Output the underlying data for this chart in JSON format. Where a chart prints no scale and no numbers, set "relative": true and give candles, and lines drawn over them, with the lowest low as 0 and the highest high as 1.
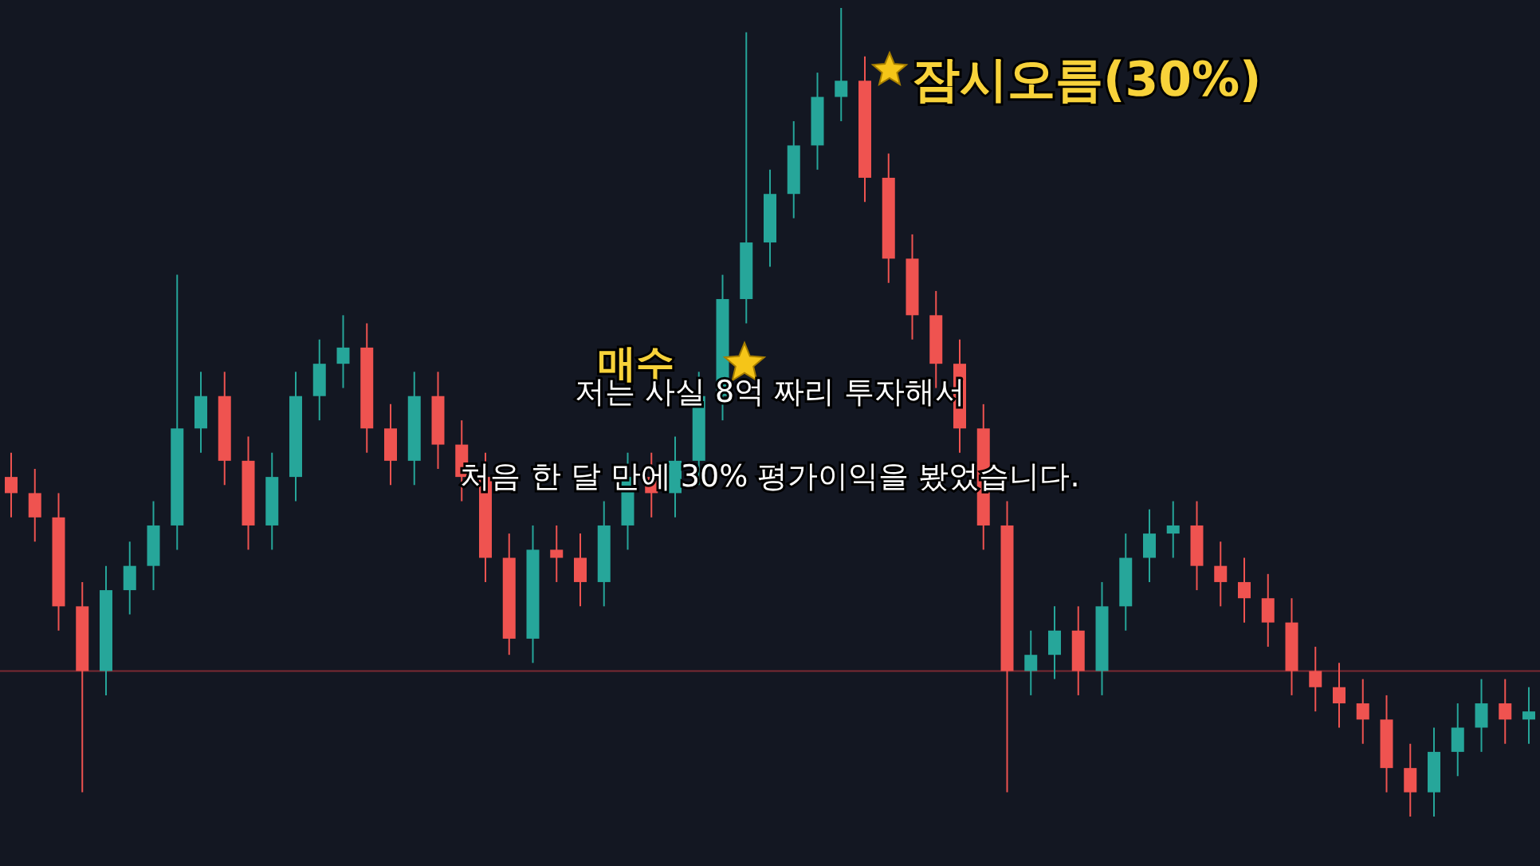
{
  "chart_data": {
    "type": "candlestick",
    "relative": true,
    "categories": [
      null,
      null,
      null,
      null,
      null,
      null,
      null,
      null,
      null,
      null,
      null,
      null,
      null,
      null,
      null,
      null,
      null,
      null,
      null,
      null,
      null,
      null,
      null,
      null,
      null,
      null,
      null,
      null,
      null,
      null,
      null,
      null,
      null,
      null,
      null,
      null,
      null,
      null,
      null,
      null,
      null,
      null,
      null,
      null,
      null,
      null,
      null,
      null,
      null,
      null,
      null,
      null,
      null,
      null,
      null,
      null,
      null,
      null,
      null,
      null,
      null,
      null,
      null,
      null,
      null
    ],
    "ohlc": [
      [
        0.42,
        0.45,
        0.37,
        0.4
      ],
      [
        0.4,
        0.43,
        0.34,
        0.37
      ],
      [
        0.37,
        0.4,
        0.23,
        0.26
      ],
      [
        0.26,
        0.29,
        0.03,
        0.18
      ],
      [
        0.18,
        0.31,
        0.15,
        0.28
      ],
      [
        0.28,
        0.34,
        0.25,
        0.31
      ],
      [
        0.31,
        0.39,
        0.28,
        0.36
      ],
      [
        0.36,
        0.67,
        0.33,
        0.48
      ],
      [
        0.48,
        0.55,
        0.45,
        0.52
      ],
      [
        0.52,
        0.55,
        0.41,
        0.44
      ],
      [
        0.44,
        0.47,
        0.33,
        0.36
      ],
      [
        0.36,
        0.45,
        0.33,
        0.42
      ],
      [
        0.42,
        0.55,
        0.39,
        0.52
      ],
      [
        0.52,
        0.59,
        0.49,
        0.56
      ],
      [
        0.56,
        0.62,
        0.53,
        0.58
      ],
      [
        0.58,
        0.61,
        0.45,
        0.48
      ],
      [
        0.48,
        0.51,
        0.41,
        0.44
      ],
      [
        0.44,
        0.55,
        0.41,
        0.52
      ],
      [
        0.52,
        0.55,
        0.43,
        0.46
      ],
      [
        0.46,
        0.49,
        0.39,
        0.42
      ],
      [
        0.42,
        0.45,
        0.29,
        0.32
      ],
      [
        0.32,
        0.35,
        0.2,
        0.22
      ],
      [
        0.22,
        0.36,
        0.19,
        0.33
      ],
      [
        0.33,
        0.36,
        0.29,
        0.32
      ],
      [
        0.32,
        0.35,
        0.26,
        0.29
      ],
      [
        0.29,
        0.39,
        0.26,
        0.36
      ],
      [
        0.36,
        0.45,
        0.33,
        0.42
      ],
      [
        0.42,
        0.45,
        0.37,
        0.4
      ],
      [
        0.4,
        0.47,
        0.37,
        0.44
      ],
      [
        0.44,
        0.55,
        0.41,
        0.52
      ],
      [
        0.52,
        0.67,
        0.49,
        0.64
      ],
      [
        0.64,
        0.97,
        0.61,
        0.71
      ],
      [
        0.71,
        0.8,
        0.68,
        0.77
      ],
      [
        0.77,
        0.86,
        0.74,
        0.83
      ],
      [
        0.83,
        0.92,
        0.8,
        0.89
      ],
      [
        0.89,
        1.0,
        0.86,
        0.91
      ],
      [
        0.91,
        0.94,
        0.76,
        0.79
      ],
      [
        0.79,
        0.82,
        0.66,
        0.69
      ],
      [
        0.69,
        0.72,
        0.59,
        0.62
      ],
      [
        0.62,
        0.65,
        0.53,
        0.56
      ],
      [
        0.56,
        0.59,
        0.45,
        0.48
      ],
      [
        0.48,
        0.51,
        0.33,
        0.36
      ],
      [
        0.36,
        0.39,
        0.03,
        0.18
      ],
      [
        0.18,
        0.23,
        0.15,
        0.2
      ],
      [
        0.2,
        0.26,
        0.17,
        0.23
      ],
      [
        0.23,
        0.26,
        0.15,
        0.18
      ],
      [
        0.18,
        0.29,
        0.15,
        0.26
      ],
      [
        0.26,
        0.35,
        0.23,
        0.32
      ],
      [
        0.32,
        0.38,
        0.29,
        0.35
      ],
      [
        0.35,
        0.39,
        0.32,
        0.36
      ],
      [
        0.36,
        0.39,
        0.28,
        0.31
      ],
      [
        0.31,
        0.34,
        0.26,
        0.29
      ],
      [
        0.29,
        0.32,
        0.24,
        0.27
      ],
      [
        0.27,
        0.3,
        0.21,
        0.24
      ],
      [
        0.24,
        0.27,
        0.15,
        0.18
      ],
      [
        0.18,
        0.21,
        0.13,
        0.16
      ],
      [
        0.16,
        0.19,
        0.11,
        0.14
      ],
      [
        0.14,
        0.17,
        0.09,
        0.12
      ],
      [
        0.12,
        0.15,
        0.03,
        0.06
      ],
      [
        0.06,
        0.09,
        0.0,
        0.03
      ],
      [
        0.03,
        0.11,
        0.0,
        0.08
      ],
      [
        0.08,
        0.14,
        0.05,
        0.11
      ],
      [
        0.11,
        0.17,
        0.08,
        0.14
      ],
      [
        0.14,
        0.17,
        0.09,
        0.12
      ],
      [
        0.12,
        0.16,
        0.09,
        0.13
      ]
    ],
    "ref_lines": [
      {
        "axis": "y",
        "value": 0.18,
        "color": "#7a2a32"
      }
    ],
    "annotations": [
      "잠시오름(30%)",
      "매수",
      "저는 사실 8억 짜리 투자해서",
      "처음 한 달 만에 30% 평가이익을 봤었습니다."
    ]
  }
}
